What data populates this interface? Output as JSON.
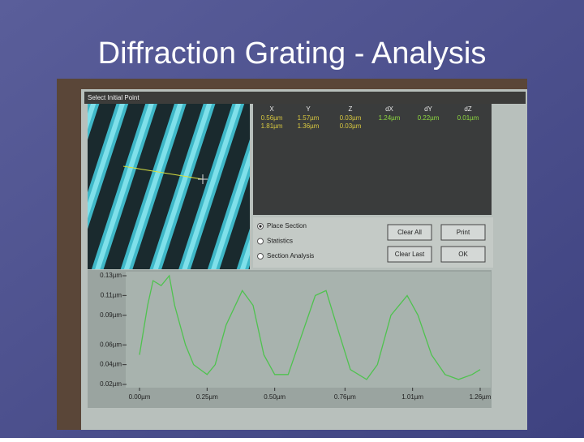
{
  "title": "Diffraction Grating - Analysis",
  "window": {
    "title": "Select Initial Point"
  },
  "table": {
    "headers": [
      "X",
      "Y",
      "Z",
      "dX",
      "dY",
      "dZ"
    ],
    "rows": [
      [
        "0.56µm",
        "1.57µm",
        "0.03µm",
        "1.24µm",
        "0.22µm",
        "0.01µm"
      ],
      [
        "1.81µm",
        "1.36µm",
        "0.03µm"
      ]
    ]
  },
  "controls": {
    "options": [
      "Place Section",
      "Statistics",
      "Section Analysis"
    ],
    "buttons": [
      [
        "Clear All",
        "Print"
      ],
      [
        "Clear Last",
        "OK"
      ]
    ]
  },
  "chart_data": {
    "type": "line",
    "color": "#4fc24f",
    "x": [
      0.0,
      0.03,
      0.05,
      0.08,
      0.11,
      0.13,
      0.17,
      0.2,
      0.25,
      0.28,
      0.32,
      0.38,
      0.42,
      0.46,
      0.5,
      0.55,
      0.6,
      0.65,
      0.69,
      0.74,
      0.78,
      0.84,
      0.88,
      0.93,
      0.99,
      1.03,
      1.08,
      1.13,
      1.18,
      1.23,
      1.26
    ],
    "values": [
      0.05,
      0.1,
      0.125,
      0.12,
      0.13,
      0.1,
      0.06,
      0.04,
      0.03,
      0.04,
      0.08,
      0.115,
      0.1,
      0.05,
      0.03,
      0.03,
      0.07,
      0.11,
      0.115,
      0.07,
      0.035,
      0.025,
      0.04,
      0.09,
      0.11,
      0.09,
      0.05,
      0.03,
      0.025,
      0.03,
      0.035
    ],
    "xlim": [
      0,
      1.26
    ],
    "ylim": [
      0.02,
      0.13
    ],
    "xticks": [
      {
        "value": 0,
        "label": "0.00µm"
      },
      {
        "value": 0.25,
        "label": "0.25µm"
      },
      {
        "value": 0.5,
        "label": "0.50µm"
      },
      {
        "value": 0.76,
        "label": "0.76µm"
      },
      {
        "value": 1.01,
        "label": "1.01µm"
      },
      {
        "value": 1.26,
        "label": "1.26µm"
      }
    ],
    "yticks": [
      {
        "value": 0.13,
        "label": "0.13µm"
      },
      {
        "value": 0.11,
        "label": "0.11µm"
      },
      {
        "value": 0.09,
        "label": "0.09µm"
      },
      {
        "value": 0.06,
        "label": "0.06µm"
      },
      {
        "value": 0.04,
        "label": "0.04µm"
      },
      {
        "value": 0.02,
        "label": "0.02µm"
      }
    ]
  }
}
